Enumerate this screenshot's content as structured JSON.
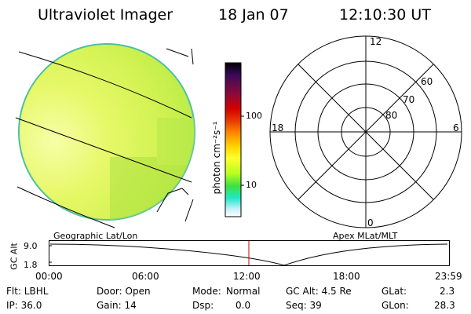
{
  "header": {
    "instrument": "Ultraviolet Imager",
    "date": "18 Jan 07",
    "time": "12:10:30 UT"
  },
  "colorbar": {
    "unit_label": "photon cm⁻²s⁻¹",
    "ticks": [
      "100",
      "10"
    ],
    "scale": "log",
    "colors": [
      "#000000",
      "#3a0a5a",
      "#8a0a3a",
      "#d40000",
      "#e83c00",
      "#ff8c00",
      "#ffd800",
      "#ffff30",
      "#b8ff20",
      "#40e040",
      "#20e8c8",
      "#c8f0f8",
      "#ffffff"
    ]
  },
  "polar_plot": {
    "top_label": "12",
    "left_label": "18",
    "right_label": "6",
    "bottom_label": "0",
    "lat_labels": [
      "60",
      "70",
      "80"
    ]
  },
  "map_labels": {
    "left": "Geographic Lat/Lon",
    "right": "Apex MLat/MLT"
  },
  "altitude_panel": {
    "axis_title": "GC Alt",
    "y_ticks": [
      "9.0",
      "1.8"
    ],
    "x_ticks": [
      "00:00",
      "06:00",
      "12:00",
      "18:00",
      "23:59"
    ],
    "marker_color": "#cc0000"
  },
  "status": {
    "flt": "Flt: LBHL",
    "ip": "IP: 36.0",
    "door": "Door: Open",
    "gain": "Gain: 14",
    "mode_label": "Mode:",
    "mode_value": "Normal",
    "dsp_label": "Dsp:",
    "dsp_value": "0.0",
    "gc_alt": "GC Alt: 4.5 Re",
    "seq": "Seq: 39",
    "glat_label": "GLat:",
    "glat_value": "2.3",
    "glon_label": "GLon:",
    "glon_value": "28.3"
  },
  "colors": {
    "earth_bright": "#f2ff8a",
    "earth_main": "#d8f55a",
    "earth_green": "#b4ec48",
    "earth_edge": "#40b8a0"
  }
}
